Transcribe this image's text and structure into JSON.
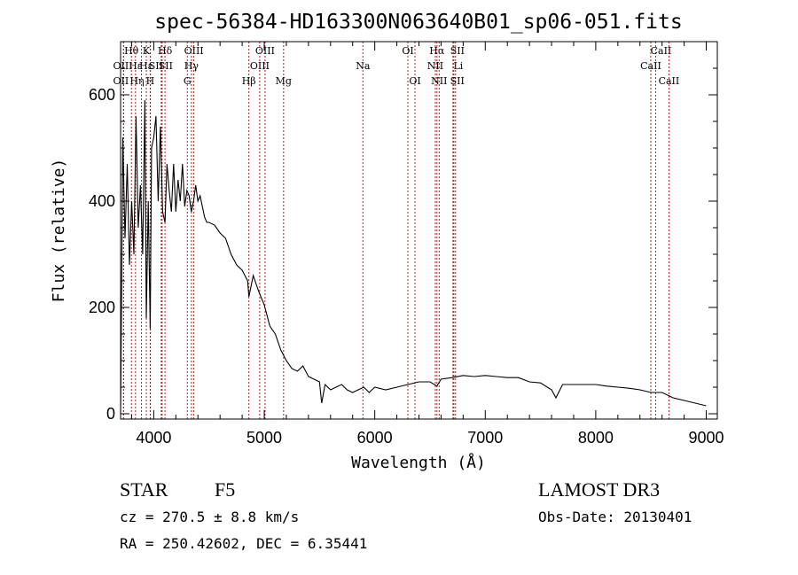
{
  "chart_data": {
    "type": "line",
    "title": "spec-56384-HD163300N063640B01_sp06-051.fits",
    "xlabel": "Wavelength (Å)",
    "ylabel": "Flux (relative)",
    "xlim": [
      3700,
      9100
    ],
    "ylim": [
      -10,
      700
    ],
    "xticks": [
      4000,
      5000,
      6000,
      7000,
      8000,
      9000
    ],
    "yticks": [
      0,
      200,
      400,
      600
    ],
    "grid": false,
    "series": [
      {
        "x": [
          3700,
          3720,
          3740,
          3760,
          3780,
          3800,
          3820,
          3840,
          3860,
          3880,
          3900,
          3920,
          3933,
          3950,
          3968,
          3980,
          4000,
          4020,
          4040,
          4060,
          4080,
          4102,
          4120,
          4140,
          4160,
          4180,
          4200,
          4220,
          4240,
          4260,
          4280,
          4300,
          4320,
          4340,
          4360,
          4380,
          4400,
          4420,
          4440,
          4460,
          4480,
          4500,
          4550,
          4600,
          4650,
          4700,
          4750,
          4800,
          4850,
          4861,
          4900,
          4950,
          5000,
          5050,
          5100,
          5150,
          5200,
          5250,
          5300,
          5350,
          5400,
          5450,
          5500,
          5520,
          5550,
          5600,
          5650,
          5700,
          5750,
          5800,
          5850,
          5900,
          5950,
          6000,
          6100,
          6200,
          6300,
          6400,
          6500,
          6563,
          6600,
          6700,
          6800,
          6900,
          7000,
          7100,
          7200,
          7300,
          7400,
          7500,
          7600,
          7640,
          7700,
          7800,
          7900,
          8000,
          8100,
          8200,
          8300,
          8400,
          8500,
          8600,
          8700,
          8800,
          8900,
          9000
        ],
        "values": [
          0,
          520,
          330,
          470,
          280,
          400,
          300,
          560,
          350,
          430,
          300,
          590,
          180,
          400,
          160,
          500,
          520,
          560,
          400,
          540,
          380,
          360,
          470,
          420,
          380,
          470,
          380,
          440,
          400,
          470,
          390,
          420,
          410,
          380,
          400,
          430,
          400,
          410,
          390,
          370,
          360,
          360,
          355,
          340,
          330,
          300,
          280,
          270,
          250,
          220,
          260,
          230,
          205,
          165,
          150,
          120,
          100,
          85,
          80,
          90,
          70,
          65,
          60,
          20,
          55,
          45,
          50,
          55,
          45,
          40,
          45,
          50,
          40,
          50,
          45,
          50,
          55,
          60,
          60,
          52,
          65,
          68,
          72,
          70,
          72,
          70,
          68,
          68,
          60,
          58,
          45,
          30,
          55,
          55,
          55,
          55,
          52,
          50,
          48,
          45,
          40,
          40,
          30,
          25,
          20,
          15
        ]
      }
    ],
    "line_markers": [
      {
        "label": "OII",
        "x": 3727,
        "row": 2,
        "dx": -3
      },
      {
        "label": "OII",
        "x": 3727,
        "row": 3,
        "dx": -3
      },
      {
        "label": "Hθ",
        "x": 3798,
        "row": 1,
        "dx": 0
      },
      {
        "label": "Hε",
        "x": 3835,
        "row": 2,
        "dx": 0
      },
      {
        "label": "Hη",
        "x": 3889,
        "row": 3,
        "dx": -5
      },
      {
        "label": "K",
        "x": 3933,
        "row": 1,
        "dx": 0
      },
      {
        "label": "Hε",
        "x": 3970,
        "row": 2,
        "dx": -5
      },
      {
        "label": "H",
        "x": 3968,
        "row": 3,
        "dx": 0
      },
      {
        "label": "SII",
        "x": 4068,
        "row": 2,
        "dx": -6
      },
      {
        "label": "Hδ",
        "x": 4102,
        "row": 1,
        "dx": 0
      },
      {
        "label": "SII",
        "x": 4076,
        "row": 2,
        "dx": 4
      },
      {
        "label": "OIII",
        "x": 4363,
        "row": 1,
        "dx": 0
      },
      {
        "label": "Hγ",
        "x": 4341,
        "row": 2,
        "dx": 0
      },
      {
        "label": "G",
        "x": 4304,
        "row": 3,
        "dx": 0
      },
      {
        "label": "OIII",
        "x": 5007,
        "row": 1,
        "dx": 0
      },
      {
        "label": "OIII",
        "x": 4959,
        "row": 2,
        "dx": 0
      },
      {
        "label": "Hβ",
        "x": 4861,
        "row": 3,
        "dx": 0
      },
      {
        "label": "Mg",
        "x": 5175,
        "row": 3,
        "dx": 0
      },
      {
        "label": "Na",
        "x": 5893,
        "row": 2,
        "dx": 0
      },
      {
        "label": "OI",
        "x": 6300,
        "row": 1,
        "dx": 0
      },
      {
        "label": "OI",
        "x": 6364,
        "row": 3,
        "dx": 0
      },
      {
        "label": "Hα",
        "x": 6563,
        "row": 1,
        "dx": 0
      },
      {
        "label": "NII",
        "x": 6548,
        "row": 2,
        "dx": 0
      },
      {
        "label": "NII",
        "x": 6583,
        "row": 3,
        "dx": 0
      },
      {
        "label": "SII",
        "x": 6716,
        "row": 1,
        "dx": 4
      },
      {
        "label": "Li",
        "x": 6708,
        "row": 2,
        "dx": 6
      },
      {
        "label": "SII",
        "x": 6731,
        "row": 3,
        "dx": 2
      },
      {
        "label": "CaII",
        "x": 8542,
        "row": 1,
        "dx": 6
      },
      {
        "label": "CaII",
        "x": 8498,
        "row": 2,
        "dx": 0
      },
      {
        "label": "CaII",
        "x": 8662,
        "row": 3,
        "dx": 0
      }
    ]
  },
  "info": {
    "object_class": "STAR",
    "subclass": "F5",
    "survey": "LAMOST DR3",
    "redshift": "cz = 270.5 ± 8.8 km/s",
    "obs_date": "Obs-Date: 20130401",
    "coords": "RA = 250.42602, DEC =   6.35441"
  },
  "colors": {
    "spectrum": "#000000",
    "markers": "#aa2222",
    "axes": "#000000"
  }
}
